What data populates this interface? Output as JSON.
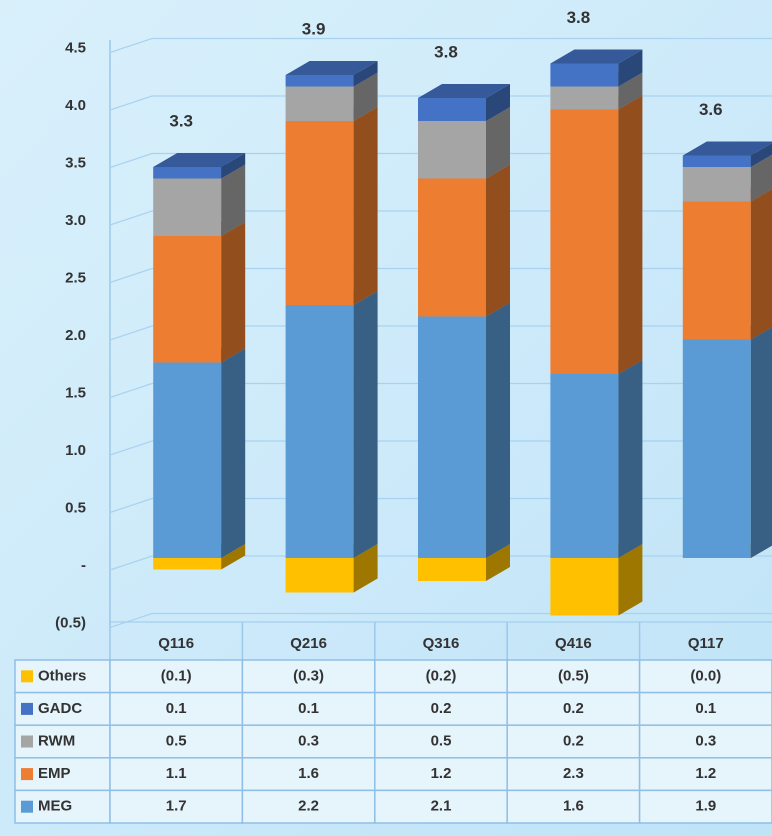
{
  "chart_data": {
    "type": "stacked-bar-3d",
    "categories": [
      "Q116",
      "Q216",
      "Q316",
      "Q416",
      "Q117"
    ],
    "series": [
      {
        "name": "Others",
        "color": "#ffc000",
        "values": [
          -0.1,
          -0.3,
          -0.2,
          -0.5,
          -0.0
        ],
        "value_labels": [
          "(0.1)",
          "(0.3)",
          "(0.2)",
          "(0.5)",
          "(0.0)"
        ]
      },
      {
        "name": "GADC",
        "color": "#4472c4",
        "values": [
          0.1,
          0.1,
          0.2,
          0.2,
          0.1
        ]
      },
      {
        "name": "RWM",
        "color": "#a5a5a5",
        "values": [
          0.5,
          0.3,
          0.5,
          0.2,
          0.3
        ]
      },
      {
        "name": "EMP",
        "color": "#ed7d31",
        "values": [
          1.1,
          1.6,
          1.2,
          2.3,
          1.2
        ]
      },
      {
        "name": "MEG",
        "color": "#5b9bd5",
        "values": [
          1.7,
          2.2,
          2.1,
          1.6,
          1.9
        ]
      }
    ],
    "totals": [
      3.3,
      3.9,
      3.8,
      3.8,
      3.6
    ],
    "ylim": [
      -0.5,
      4.5
    ],
    "yticks": [
      {
        "value": -0.5,
        "label": "(0.5)"
      },
      {
        "value": 0,
        "label": "-"
      },
      0.5,
      {
        "value": 1,
        "label": "1.0"
      },
      1.5,
      {
        "value": 2,
        "label": "2.0"
      },
      2.5,
      {
        "value": 3,
        "label": "3.0"
      },
      3.5,
      {
        "value": 4,
        "label": "4.0"
      },
      4.5
    ],
    "grid": true
  }
}
